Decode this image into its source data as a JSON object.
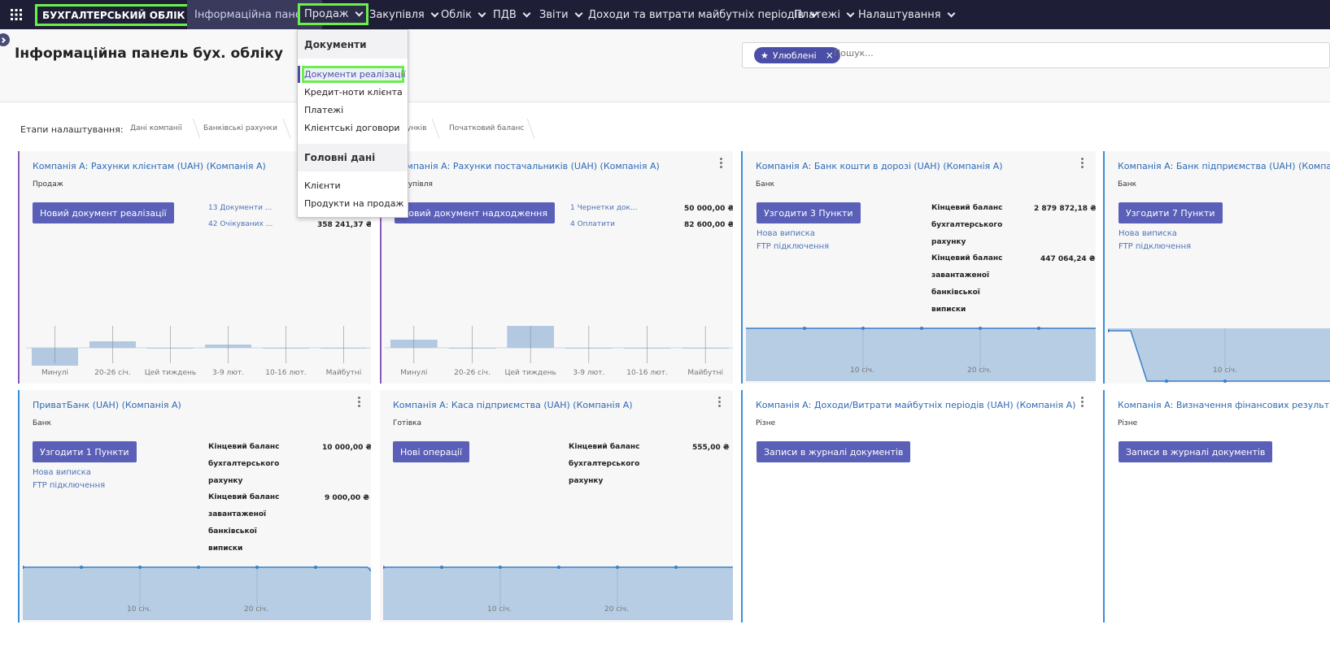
{
  "app": {
    "brand": "БУХГАЛТЕРСЬКИЙ ОБЛІК",
    "menu": [
      {
        "label": "Інформаційна панель"
      },
      {
        "label": "Продаж"
      },
      {
        "label": "Закупівля"
      },
      {
        "label": "Облік"
      },
      {
        "label": "ПДВ"
      },
      {
        "label": "Звіти"
      },
      {
        "label": "Доходи та витрати майбутніх періодів"
      },
      {
        "label": "Платежі"
      },
      {
        "label": "Налаштування"
      }
    ]
  },
  "page": {
    "title": "Інформаційна панель бух. обліку"
  },
  "search": {
    "favorite_chip": "Улюблені",
    "placeholder": "Пошук..."
  },
  "steps": {
    "label": "Етапи налаштування:",
    "items": [
      "Дані компанії",
      "Банківські рахунки",
      "унків",
      "Початковий баланс"
    ]
  },
  "dropdown": {
    "section1": "Документи",
    "items1": [
      "Документи реалізації",
      "Кредит-ноти клієнта",
      "Платежі",
      "Клієнтські договори"
    ],
    "section2": "Головні дані",
    "items2": [
      "Клієнти",
      "Продукти на продаж"
    ]
  },
  "cards": [
    {
      "title": "Компанія А: Рахунки клієнтам (UAH) (Компанія А)",
      "type": "Продаж",
      "button": "Новий документ реалізації",
      "links": [
        "13 Документи ...",
        "42 Очікуваних ..."
      ],
      "values": [
        "",
        "358 241,37 ₴"
      ],
      "chart_labels": [
        "Минулі",
        "20-26 січ.",
        "Цей тиждень",
        "3-9 лют.",
        "10-16 лют.",
        "Майбутні"
      ]
    },
    {
      "title": "Компанія А: Рахунки постачальників (UAH) (Компанія А)",
      "type": "Закупівля",
      "button": "Новий документ надходження",
      "links": [
        "1 Чернетки док...",
        "4 Оплатити"
      ],
      "values": [
        "50 000,00 ₴",
        "82 600,00 ₴"
      ],
      "chart_labels": [
        "Минулі",
        "20-26 січ.",
        "Цей тиждень",
        "3-9 лют.",
        "10-16 лют.",
        "Майбутні"
      ]
    },
    {
      "title": "Компанія А: Банк кошти в дорозі (UAH) (Компанія А)",
      "type": "Банк",
      "button": "Узгодити 3 Пункти",
      "links": [
        "Нова виписка",
        "FTP підключення"
      ],
      "balance_label_1": "Кінцевий баланс бухгалтерського рахунку",
      "balance_value_1": "2 879 872,18 ₴",
      "balance_label_2": "Кінцевий баланс завантаженої банківської виписки",
      "balance_value_2": "447 064,24 ₴",
      "chart_labels": [
        "10 січ.",
        "20 січ."
      ]
    },
    {
      "title": "Компанія А: Банк підприємства (UAH) (Компанія А)",
      "type": "Банк",
      "button": "Узгодити 7 Пункти",
      "links": [
        "Нова виписка",
        "FTP підключення"
      ],
      "chart_labels": [
        "10 січ."
      ]
    },
    {
      "title": "ПриватБанк (UAH) (Компанія А)",
      "type": "Банк",
      "button": "Узгодити 1 Пункти",
      "links": [
        "Нова виписка",
        "FTP підключення"
      ],
      "balance_label_1": "Кінцевий баланс бухгалтерського рахунку",
      "balance_value_1": "10 000,00 ₴",
      "balance_label_2": "Кінцевий баланс завантаженої банківської виписки",
      "balance_value_2": "9 000,00 ₴",
      "chart_labels": [
        "10 січ.",
        "20 січ."
      ]
    },
    {
      "title": "Компанія А: Каса підприємства (UAH) (Компанія А)",
      "type": "Готівка",
      "button": "Нові операції",
      "balance_label_1": "Кінцевий баланс бухгалтерського рахунку",
      "balance_value_1": "555,00 ₴",
      "chart_labels": [
        "10 січ.",
        "20 січ."
      ]
    },
    {
      "title": "Компанія А: Доходи/Витрати майбутніх періодів (UAH) (Компанія А)",
      "type": "Різне",
      "button": "Записи в журналі документів"
    },
    {
      "title": "Компанія А: Визначення фінансових результатів (UAH) (Компанія А)",
      "type": "Різне",
      "button": "Записи в журналі документів"
    }
  ],
  "chart_data": [
    {
      "type": "bar",
      "categories": [
        "Минулі",
        "20-26 січ.",
        "Цей тиждень",
        "3-9 лют.",
        "10-16 лют.",
        "Майбутні"
      ],
      "values": [
        -22,
        8,
        0,
        4,
        0,
        0
      ]
    },
    {
      "type": "bar",
      "categories": [
        "Минулі",
        "20-26 січ.",
        "Цей тиждень",
        "3-9 лют.",
        "10-16 лют.",
        "Майбутні"
      ],
      "values": [
        10,
        0,
        30,
        0,
        0,
        0
      ]
    }
  ],
  "colors": {
    "navbar": "#1e1f36",
    "accent": "#5a5fb8",
    "highlight": "#6bf04a",
    "bar": "#b3c8e1"
  }
}
